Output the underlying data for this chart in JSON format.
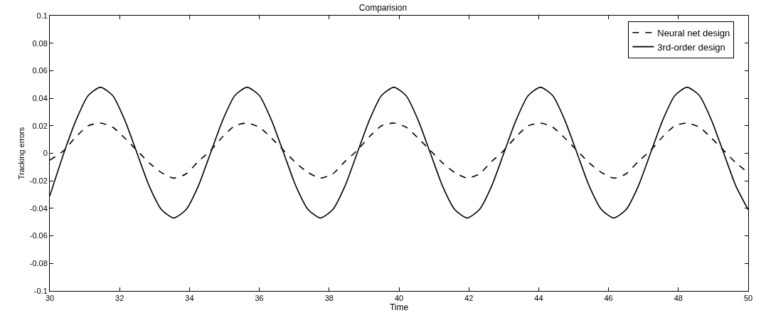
{
  "chart_data": {
    "type": "line",
    "title": "Comparision",
    "xlabel": "Time",
    "ylabel": "Tracking errors",
    "x": [
      30,
      30.4,
      30.75,
      31.1,
      31.45,
      31.8,
      32.15,
      32.5,
      32.85,
      33.2,
      33.55,
      33.9,
      34.25,
      34.6,
      34.95,
      35.3,
      35.65,
      36,
      36.35,
      36.7,
      37.05,
      37.4,
      37.75,
      38.1,
      38.45,
      38.8,
      39.15,
      39.5,
      39.85,
      40.2,
      40.55,
      40.9,
      41.25,
      41.6,
      41.95,
      42.3,
      42.65,
      43,
      43.35,
      43.7,
      44.05,
      44.4,
      44.75,
      45.1,
      45.45,
      45.8,
      46.15,
      46.5,
      46.85,
      47.2,
      47.55,
      47.9,
      48.25,
      48.6,
      48.95,
      49.3,
      49.65,
      50
    ],
    "series": [
      {
        "name": "Neural net design",
        "color": "#000000",
        "line_style": "dashed",
        "values": [
          -0.005,
          0.002,
          0.012,
          0.02,
          0.022,
          0.019,
          0.011,
          0.002,
          -0.007,
          -0.014,
          -0.018,
          -0.015,
          -0.006,
          0.002,
          0.012,
          0.02,
          0.022,
          0.019,
          0.011,
          0.002,
          -0.007,
          -0.014,
          -0.018,
          -0.015,
          -0.006,
          0.002,
          0.012,
          0.02,
          0.022,
          0.019,
          0.011,
          0.002,
          -0.007,
          -0.014,
          -0.018,
          -0.015,
          -0.006,
          0.002,
          0.012,
          0.02,
          0.022,
          0.019,
          0.011,
          0.002,
          -0.007,
          -0.014,
          -0.018,
          -0.015,
          -0.006,
          0.002,
          0.012,
          0.02,
          0.022,
          0.019,
          0.011,
          0.002,
          -0.007,
          -0.014
        ]
      },
      {
        "name": "3rd-order design",
        "color": "#000000",
        "line_style": "solid",
        "values": [
          -0.031,
          0,
          0.024,
          0.042,
          0.048,
          0.042,
          0.024,
          0,
          -0.024,
          -0.041,
          -0.047,
          -0.041,
          -0.024,
          0,
          0.024,
          0.042,
          0.048,
          0.042,
          0.024,
          0,
          -0.024,
          -0.041,
          -0.047,
          -0.041,
          -0.024,
          0,
          0.024,
          0.042,
          0.048,
          0.042,
          0.024,
          0,
          -0.024,
          -0.041,
          -0.047,
          -0.041,
          -0.024,
          0,
          0.024,
          0.042,
          0.048,
          0.042,
          0.024,
          0,
          -0.024,
          -0.041,
          -0.047,
          -0.041,
          -0.024,
          0,
          0.024,
          0.042,
          0.048,
          0.042,
          0.024,
          0,
          -0.024,
          -0.041
        ]
      }
    ],
    "xlim": [
      30,
      50
    ],
    "xticks": [
      30,
      32,
      34,
      36,
      38,
      40,
      42,
      44,
      46,
      48,
      50
    ],
    "ylim": [
      -0.1,
      0.1
    ],
    "yticks": [
      -0.1,
      -0.08,
      -0.06,
      -0.04,
      -0.02,
      0,
      0.02,
      0.04,
      0.06,
      0.08,
      0.1
    ],
    "legend": "top right",
    "marker": "none"
  }
}
